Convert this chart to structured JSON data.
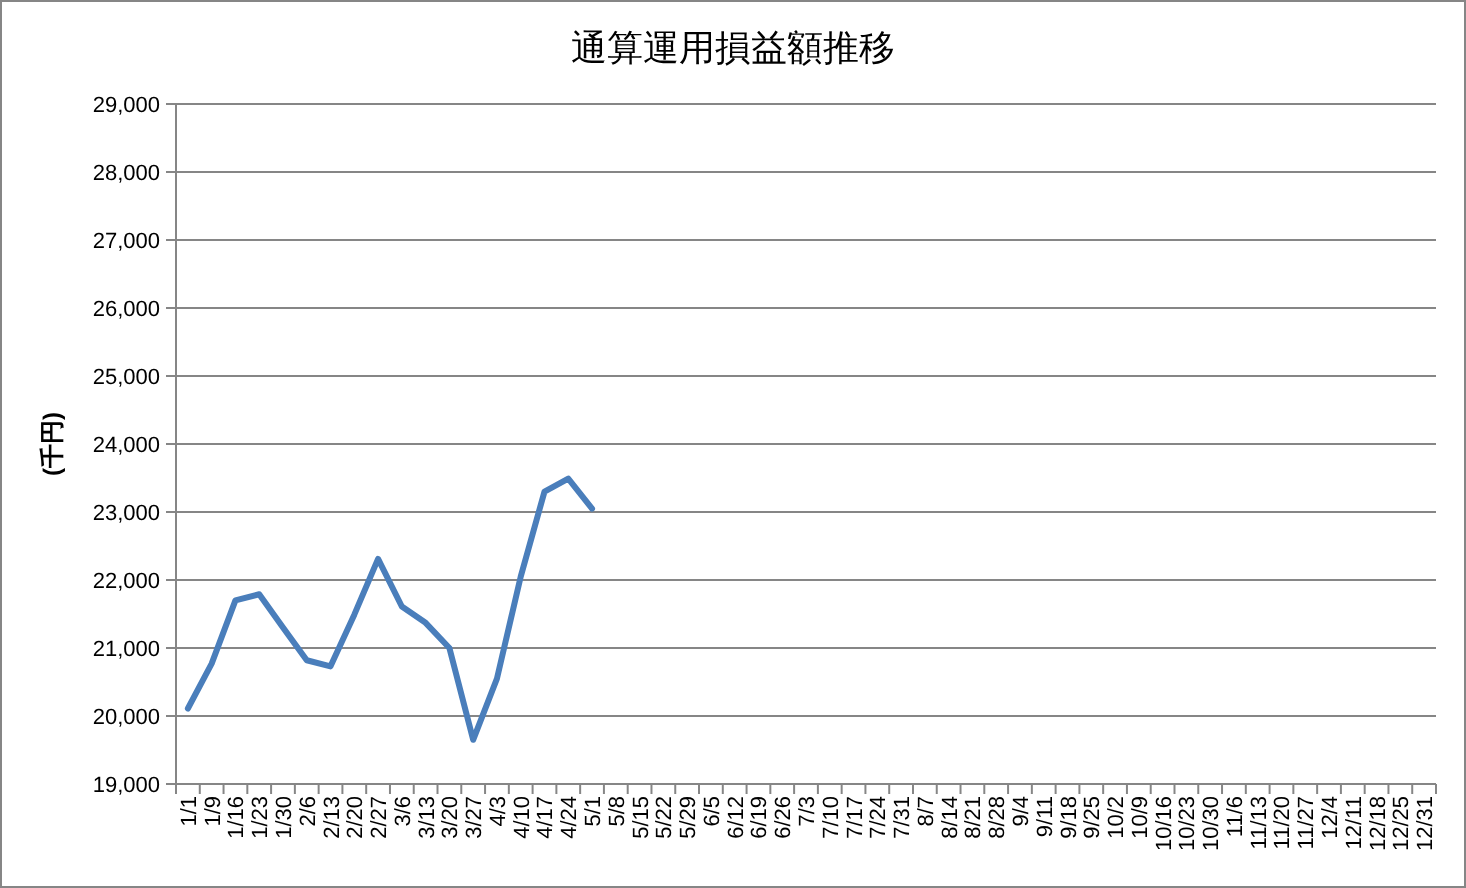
{
  "chart_data": {
    "type": "line",
    "title": "通算運用損益額推移",
    "ylabel": "(千円)",
    "categories": [
      "1/1",
      "1/9",
      "1/16",
      "1/23",
      "1/30",
      "2/6",
      "2/13",
      "2/20",
      "2/27",
      "3/6",
      "3/13",
      "3/20",
      "3/27",
      "4/3",
      "4/10",
      "4/17",
      "4/24",
      "5/1",
      "5/8",
      "5/15",
      "5/22",
      "5/29",
      "6/5",
      "6/12",
      "6/19",
      "6/26",
      "7/3",
      "7/10",
      "7/17",
      "7/24",
      "7/31",
      "8/7",
      "8/14",
      "8/21",
      "8/28",
      "9/4",
      "9/11",
      "9/18",
      "9/25",
      "10/2",
      "10/9",
      "10/16",
      "10/23",
      "10/30",
      "11/6",
      "11/13",
      "11/20",
      "11/27",
      "12/4",
      "12/11",
      "12/18",
      "12/25",
      "12/31"
    ],
    "series": [
      {
        "color": "#4a7ebb",
        "values": [
          20110,
          20770,
          21700,
          21790,
          21300,
          20820,
          20730,
          21490,
          22310,
          21610,
          21370,
          21000,
          19650,
          20550,
          22050,
          23300,
          23490,
          23050,
          null,
          null,
          null,
          null,
          null,
          null,
          null,
          null,
          null,
          null,
          null,
          null,
          null,
          null,
          null,
          null,
          null,
          null,
          null,
          null,
          null,
          null,
          null,
          null,
          null,
          null,
          null,
          null,
          null,
          null,
          null,
          null,
          null,
          null,
          null
        ]
      }
    ],
    "ylim": [
      19000,
      29000
    ],
    "yticks": [
      {
        "value": 19000,
        "label": "19,000"
      },
      {
        "value": 20000,
        "label": "20,000"
      },
      {
        "value": 21000,
        "label": "21,000"
      },
      {
        "value": 22000,
        "label": "22,000"
      },
      {
        "value": 23000,
        "label": "23,000"
      },
      {
        "value": 24000,
        "label": "24,000"
      },
      {
        "value": 25000,
        "label": "25,000"
      },
      {
        "value": 26000,
        "label": "26,000"
      },
      {
        "value": 27000,
        "label": "27,000"
      },
      {
        "value": 28000,
        "label": "28,000"
      },
      {
        "value": 29000,
        "label": "29,000"
      }
    ],
    "grid": "y",
    "marker": "none",
    "line_style": "solid"
  }
}
